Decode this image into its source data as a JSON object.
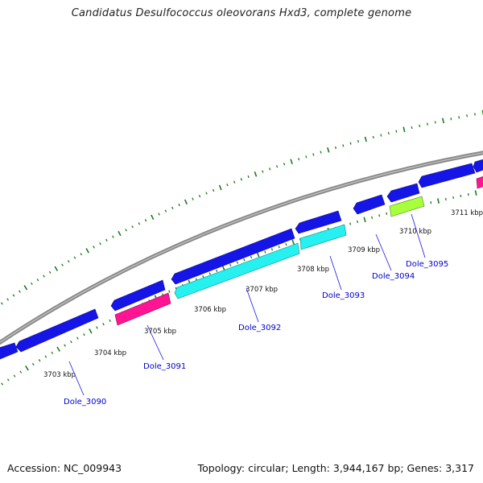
{
  "title": "Candidatus Desulfococcus oleovorans Hxd3, complete genome",
  "footer": {
    "accession": "Accession: NC_009943",
    "topology": "Topology: circular; Length: 3,944,167 bp; Genes: 3,317"
  },
  "colors": {
    "backbone": "#888888",
    "ticks": "#1a7a1a",
    "gene_blue": "#1515e8",
    "gene_pink": "#ff1493",
    "gene_cyan": "#26f0f0",
    "gene_green": "#a8ff3c",
    "label": "#0000cc"
  },
  "kbp_ticks": [
    "3703 kbp",
    "3704 kbp",
    "3705 kbp",
    "3706 kbp",
    "3707 kbp",
    "3708 kbp",
    "3709 kbp",
    "3710 kbp",
    "3711 kbp"
  ],
  "gene_labels": [
    "Dole_3090",
    "Dole_3091",
    "Dole_3092",
    "Dole_3093",
    "Dole_3094",
    "Dole_3095"
  ]
}
